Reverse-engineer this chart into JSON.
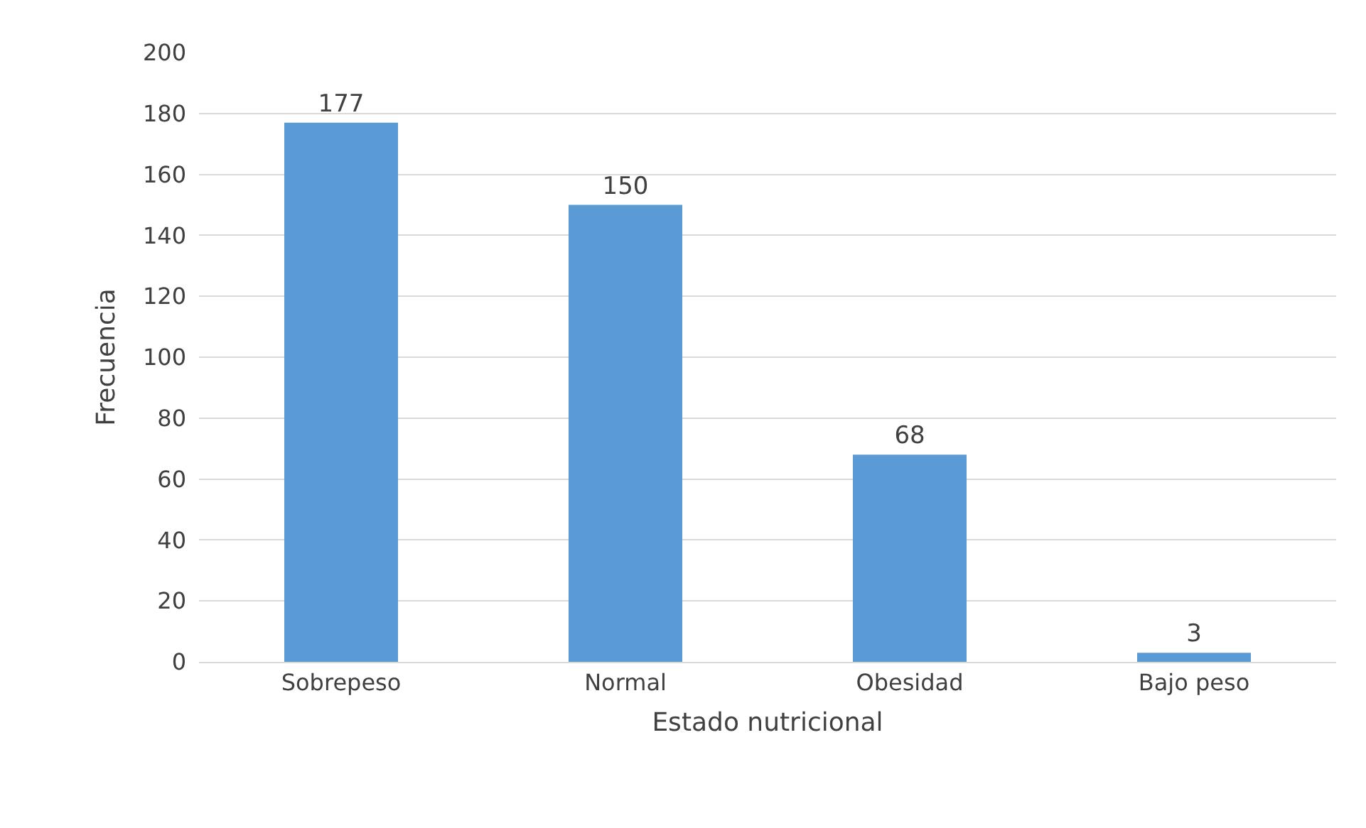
{
  "chart_data": {
    "type": "bar",
    "xlabel": "Estado nutricional",
    "ylabel": "Frecuencia",
    "categories": [
      "Sobrepeso",
      "Normal",
      "Obesidad",
      "Bajo peso"
    ],
    "values": [
      177,
      150,
      68,
      3
    ],
    "color": "#5b9bd5",
    "ylim": [
      0,
      200
    ],
    "yticks": [
      0,
      20,
      40,
      60,
      80,
      100,
      120,
      140,
      160,
      180,
      200
    ],
    "grid": "y",
    "data_labels": true
  }
}
